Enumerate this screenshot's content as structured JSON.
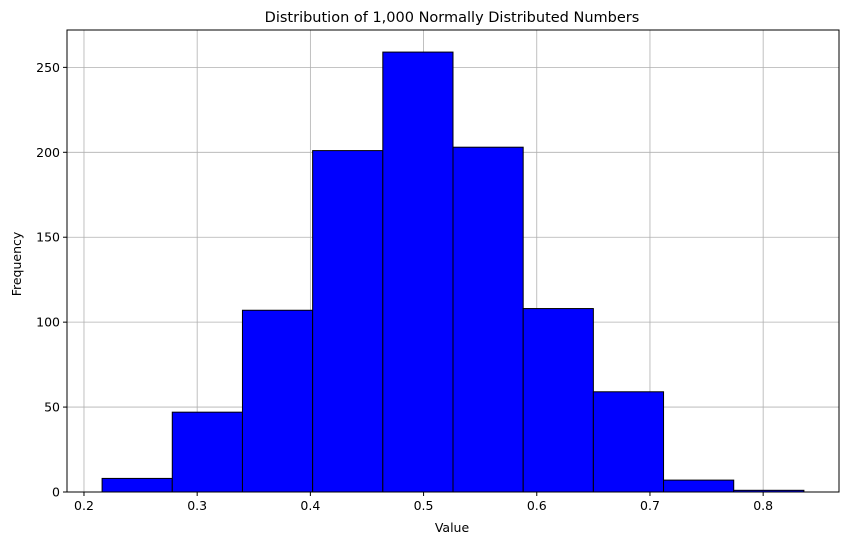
{
  "chart_data": {
    "type": "bar",
    "title": "Distribution of 1,000 Normally Distributed Numbers",
    "xlabel": "Value",
    "ylabel": "Frequency",
    "bin_edges": [
      0.216,
      0.278,
      0.34,
      0.402,
      0.464,
      0.526,
      0.588,
      0.65,
      0.712,
      0.774,
      0.836
    ],
    "values": [
      8,
      47,
      107,
      201,
      259,
      203,
      108,
      59,
      7,
      1
    ],
    "xlim": [
      0.185,
      0.867
    ],
    "ylim": [
      0,
      272
    ],
    "x_ticks": [
      0.2,
      0.3,
      0.4,
      0.5,
      0.6,
      0.7,
      0.8
    ],
    "x_tick_labels": [
      "0.2",
      "0.3",
      "0.4",
      "0.5",
      "0.6",
      "0.7",
      "0.8"
    ],
    "y_ticks": [
      0,
      50,
      100,
      150,
      200,
      250
    ],
    "y_tick_labels": [
      "0",
      "50",
      "100",
      "150",
      "200",
      "250"
    ],
    "grid": true,
    "colors": {
      "bar_fill": "#0000ff",
      "bar_edge": "#000000",
      "grid": "#b0b0b0"
    }
  }
}
